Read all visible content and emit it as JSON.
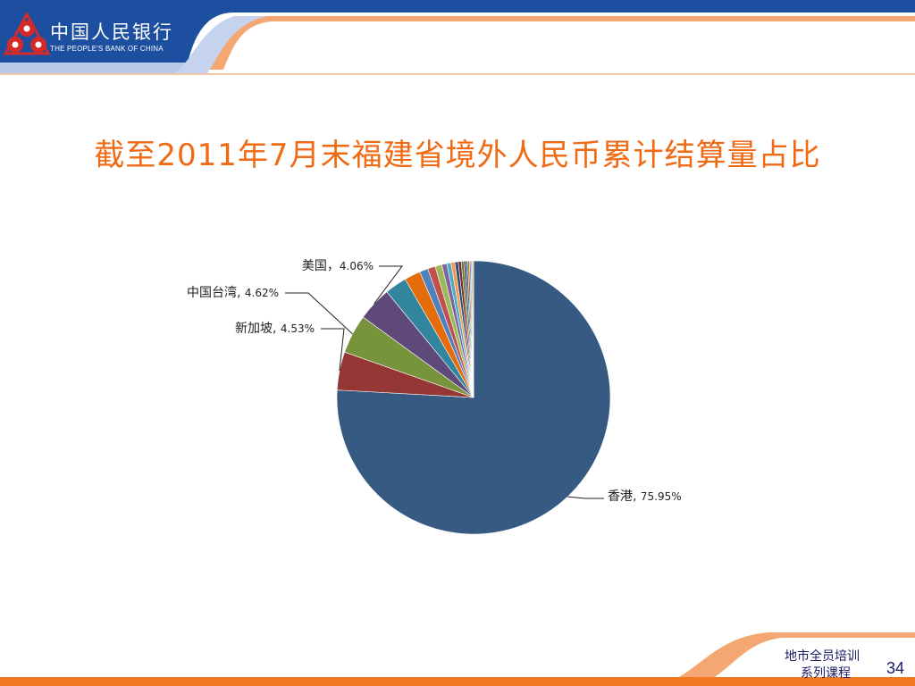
{
  "header": {
    "bank_name_cn": "中国人民银行",
    "bank_name_en": "THE PEOPLE'S BANK OF CHINA"
  },
  "slide": {
    "title": "截至2011年7月末福建省境外人民币累计结算量占比",
    "footer_line1": "地市全员培训",
    "footer_line2": "系列课程",
    "page_number": "34"
  },
  "colors": {
    "title": "#f06a14",
    "hk": "#375a82",
    "sg": "#953735",
    "tw": "#77933c",
    "us": "#5f497a",
    "accent_blue": "#1d4fa0",
    "accent_orange": "#f07820"
  },
  "chart_data": {
    "type": "pie",
    "title": "截至2011年7月末福建省境外人民币累计结算量占比",
    "labeled_slices": [
      {
        "name": "香港",
        "value": 75.95,
        "value_label": "75.95%",
        "sep": ", "
      },
      {
        "name": "新加坡",
        "value": 4.53,
        "value_label": "4.53%",
        "sep": ", "
      },
      {
        "name": "中国台湾",
        "value": 4.62,
        "value_label": "4.62%",
        "sep": ", "
      },
      {
        "name": "美国",
        "value": 4.06,
        "value_label": "4.06%",
        "sep": "，"
      }
    ],
    "slices": [
      {
        "name": "香港",
        "value": 75.95,
        "color": "#375a82"
      },
      {
        "name": "新加坡",
        "value": 4.53,
        "color": "#953735"
      },
      {
        "name": "中国台湾",
        "value": 4.62,
        "color": "#77933c"
      },
      {
        "name": "美国",
        "value": 4.06,
        "color": "#5f497a"
      },
      {
        "name": "",
        "value": 2.6,
        "color": "#31859c"
      },
      {
        "name": "",
        "value": 1.9,
        "color": "#e46c0a"
      },
      {
        "name": "",
        "value": 1.0,
        "color": "#4f81bd"
      },
      {
        "name": "",
        "value": 0.9,
        "color": "#c0504d"
      },
      {
        "name": "",
        "value": 0.8,
        "color": "#9bbb59"
      },
      {
        "name": "",
        "value": 0.6,
        "color": "#8064a2"
      },
      {
        "name": "",
        "value": 0.5,
        "color": "#4bacc6"
      },
      {
        "name": "",
        "value": 0.45,
        "color": "#f79646"
      },
      {
        "name": "",
        "value": 0.4,
        "color": "#2c4d75"
      },
      {
        "name": "",
        "value": 0.35,
        "color": "#772c2a"
      },
      {
        "name": "",
        "value": 0.3,
        "color": "#5f7530"
      },
      {
        "name": "",
        "value": 0.25,
        "color": "#4d3b62"
      },
      {
        "name": "",
        "value": 0.22,
        "color": "#276a7c"
      },
      {
        "name": "",
        "value": 0.2,
        "color": "#b65708"
      },
      {
        "name": "",
        "value": 0.18,
        "color": "#729aca"
      },
      {
        "name": "",
        "value": 0.15,
        "color": "#cd7371"
      },
      {
        "name": "",
        "value": 0.15,
        "color": "#afc97a"
      }
    ]
  }
}
